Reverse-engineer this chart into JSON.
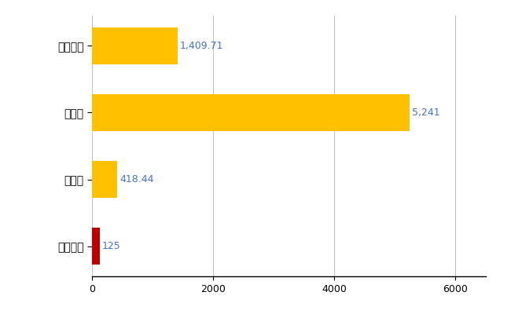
{
  "categories": [
    "猪苗代町",
    "県平均",
    "県最大",
    "全国平均"
  ],
  "values": [
    125,
    418.44,
    5241,
    1409.71
  ],
  "colors": [
    "#C00000",
    "#FFC000",
    "#FFC000",
    "#FFC000"
  ],
  "labels": [
    "125",
    "418.44",
    "5,241",
    "1,409.71"
  ],
  "xlim": [
    0,
    6500
  ],
  "xticks": [
    0,
    2000,
    4000,
    6000
  ],
  "background_color": "#FFFFFF",
  "grid_color": "#C0C0C0",
  "label_color": "#4472C4",
  "bar_height": 0.55
}
